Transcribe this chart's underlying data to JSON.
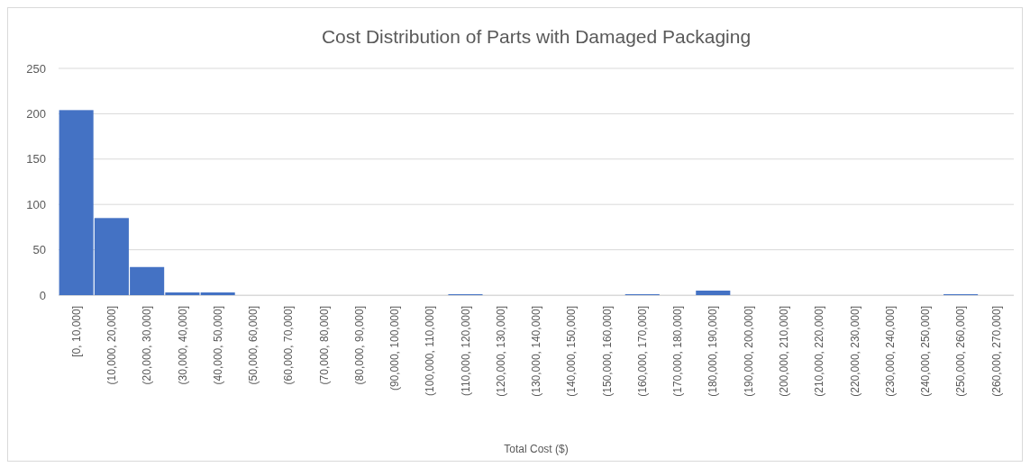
{
  "chart_data": {
    "type": "bar",
    "title": "Cost Distribution of Parts with Damaged Packaging",
    "xlabel": "Total Cost ($)",
    "categories": [
      "[0, 10,000]",
      "(10,000, 20,000]",
      "(20,000, 30,000]",
      "(30,000, 40,000]",
      "(40,000, 50,000]",
      "(50,000, 60,000]",
      "(60,000, 70,000]",
      "(70,000, 80,000]",
      "(80,000, 90,000]",
      "(90,000, 100,000]",
      "(100,000, 110,000]",
      "(110,000, 120,000]",
      "(120,000, 130,000]",
      "(130,000, 140,000]",
      "(140,000, 150,000]",
      "(150,000, 160,000]",
      "(160,000, 170,000]",
      "(170,000, 180,000]",
      "(180,000, 190,000]",
      "(190,000, 200,000]",
      "(200,000, 210,000]",
      "(210,000, 220,000]",
      "(220,000, 230,000]",
      "(230,000, 240,000]",
      "(240,000, 250,000]",
      "(250,000, 260,000]",
      "(260,000, 270,000]"
    ],
    "values": [
      204,
      85,
      31,
      3,
      3,
      0,
      0,
      0,
      0,
      0,
      0,
      1,
      0,
      0,
      0,
      0,
      1,
      0,
      5,
      0,
      0,
      0,
      0,
      0,
      0,
      1,
      0
    ],
    "color": "#4472c4",
    "ylim": [
      0,
      250
    ],
    "yticks": [
      0,
      50,
      100,
      150,
      200,
      250
    ],
    "grid": "y"
  }
}
